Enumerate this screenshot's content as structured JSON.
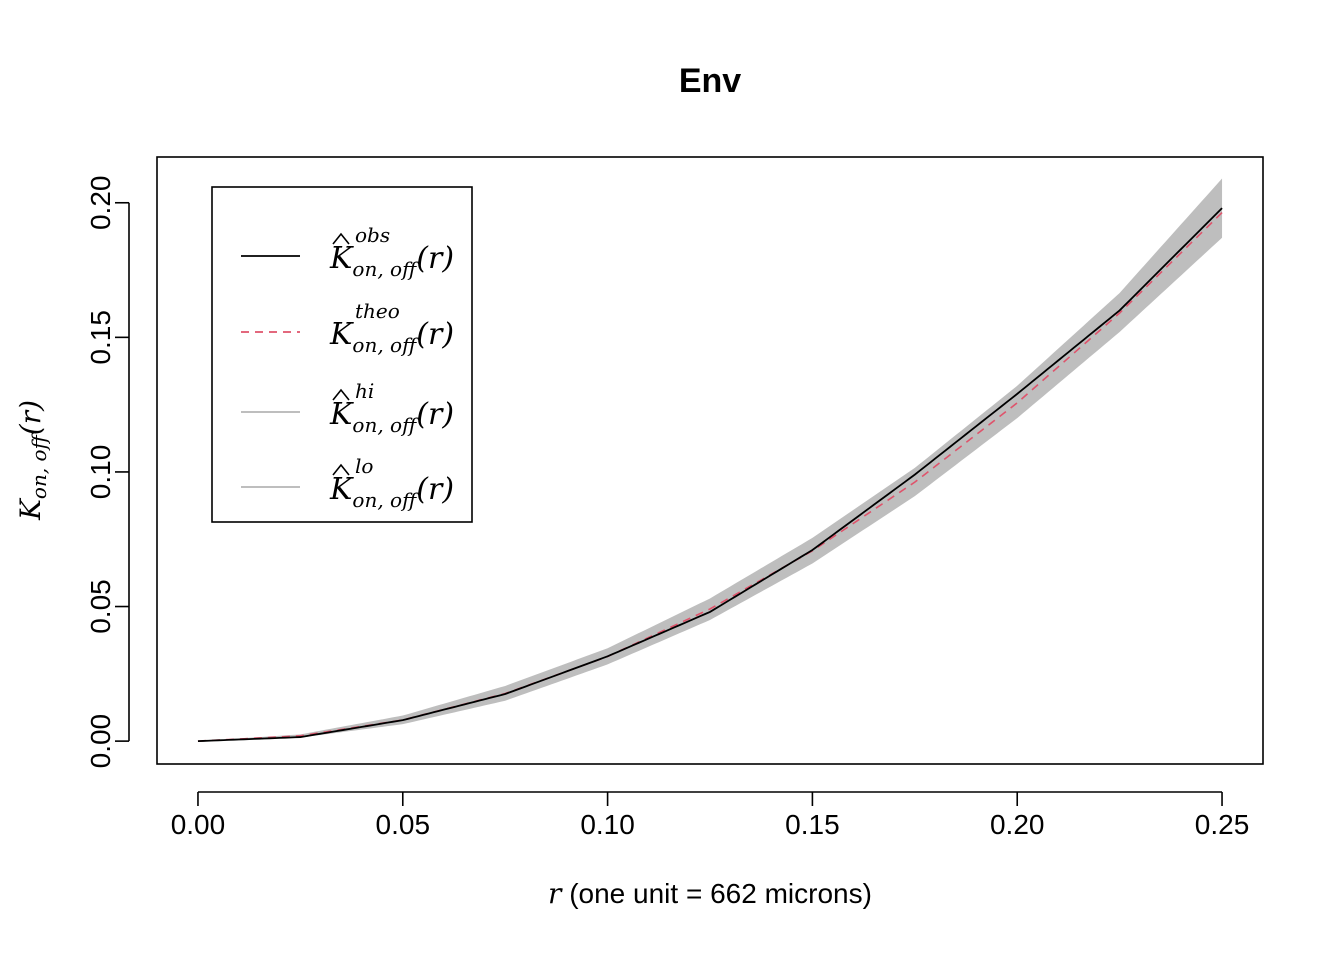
{
  "chart_data": {
    "type": "line",
    "title": "Env",
    "xlabel": {
      "var": "r",
      "text": " (one unit = 662 microns)"
    },
    "ylabel": {
      "main": "K",
      "sub": "on, off",
      "arg": "(r)"
    },
    "xlim": [
      -0.01,
      0.26
    ],
    "ylim": [
      -0.0085,
      0.217
    ],
    "x_ticks": [
      0.0,
      0.05,
      0.1,
      0.15,
      0.2,
      0.25
    ],
    "x_tick_labels": [
      "0.00",
      "0.05",
      "0.10",
      "0.15",
      "0.20",
      "0.25"
    ],
    "y_ticks": [
      0.0,
      0.05,
      0.1,
      0.15,
      0.2
    ],
    "y_tick_labels": [
      "0.00",
      "0.05",
      "0.10",
      "0.15",
      "0.20"
    ],
    "grid": false,
    "legend_position": "top-left",
    "series": [
      {
        "key": "obs",
        "name": {
          "main": "K",
          "hat": true,
          "sup": "obs",
          "sub": "on, off",
          "arg": "(r)"
        },
        "color": "#000000",
        "style": "solid",
        "x": [
          0,
          0.025,
          0.05,
          0.075,
          0.1,
          0.125,
          0.15,
          0.175,
          0.2,
          0.225,
          0.25
        ],
        "y": [
          0,
          0.0015,
          0.0078,
          0.0175,
          0.0315,
          0.048,
          0.071,
          0.099,
          0.129,
          0.16,
          0.198
        ]
      },
      {
        "key": "theo",
        "name": {
          "main": "K",
          "hat": false,
          "sup": "theo",
          "sub": "on, off",
          "arg": "(r)"
        },
        "color": "#DF536B",
        "style": "dashed",
        "x": [
          0,
          0.025,
          0.05,
          0.075,
          0.1,
          0.125,
          0.15,
          0.175,
          0.2,
          0.225,
          0.25
        ],
        "y": [
          0,
          0.00196,
          0.00785,
          0.01767,
          0.03142,
          0.04909,
          0.07069,
          0.09621,
          0.12566,
          0.15904,
          0.19635
        ]
      },
      {
        "key": "hi",
        "name": {
          "main": "K",
          "hat": true,
          "sup": "hi",
          "sub": "on, off",
          "arg": "(r)"
        },
        "color": "#BEBEBE",
        "style": "solid",
        "x": [
          0,
          0.025,
          0.05,
          0.075,
          0.1,
          0.125,
          0.15,
          0.175,
          0.2,
          0.225,
          0.25
        ],
        "y": [
          0,
          0.0025,
          0.0095,
          0.0205,
          0.0345,
          0.053,
          0.0755,
          0.1015,
          0.132,
          0.1665,
          0.209
        ]
      },
      {
        "key": "lo",
        "name": {
          "main": "K",
          "hat": true,
          "sup": "lo",
          "sub": "on, off",
          "arg": "(r)"
        },
        "color": "#BEBEBE",
        "style": "solid",
        "x": [
          0,
          0.025,
          0.05,
          0.075,
          0.1,
          0.125,
          0.15,
          0.175,
          0.2,
          0.225,
          0.25
        ],
        "y": [
          0,
          0.0013,
          0.0063,
          0.015,
          0.0285,
          0.045,
          0.066,
          0.091,
          0.12,
          0.152,
          0.187
        ]
      }
    ]
  }
}
